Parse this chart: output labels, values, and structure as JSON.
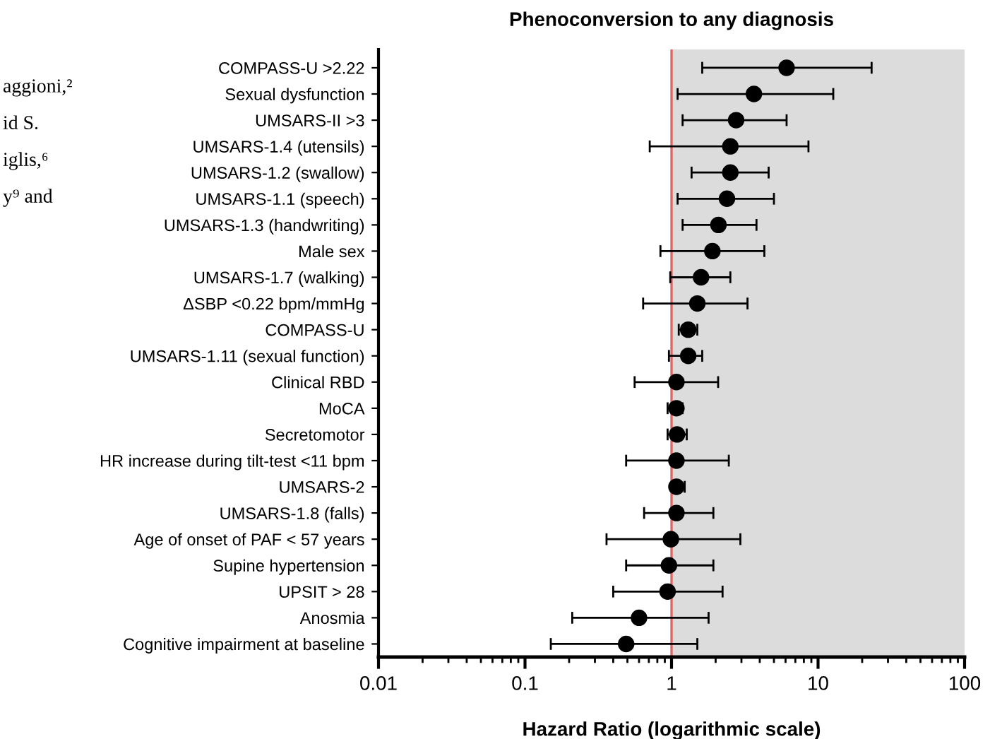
{
  "chart_data": {
    "type": "scatter",
    "title": "Phenoconversion to any diagnosis",
    "xlabel": "Hazard Ratio (logarithmic scale)",
    "categories": [
      "COMPASS-U >2.22",
      "Sexual dysfunction",
      "UMSARS-II >3",
      "UMSARS-1.4 (utensils)",
      "UMSARS-1.2 (swallow)",
      "UMSARS-1.1 (speech)",
      "UMSARS-1.3 (handwriting)",
      "Male sex",
      "UMSARS-1.7 (walking)",
      "ΔSBP <0.22 bpm/mmHg",
      "COMPASS-U",
      "UMSARS-1.11 (sexual function)",
      "Clinical RBD",
      "MoCA",
      "Secretomotor",
      "HR increase during tilt-test <11 bpm",
      "UMSARS-2",
      "UMSARS-1.8 (falls)",
      "Age of onset of PAF < 57 years",
      "Supine hypertension",
      "UPSIT > 28",
      "Anosmia",
      "Cognitive impairment at baseline"
    ],
    "orientation": "horizontal",
    "values": [
      6.1,
      3.65,
      2.76,
      2.52,
      2.52,
      2.39,
      2.09,
      1.9,
      1.59,
      1.5,
      1.3,
      1.3,
      1.08,
      1.08,
      1.09,
      1.08,
      1.08,
      1.08,
      0.99,
      0.96,
      0.94,
      0.6,
      0.49
    ],
    "errors": [
      [
        1.62,
        23.2
      ],
      [
        1.1,
        12.7
      ],
      [
        1.19,
        6.1
      ],
      [
        0.71,
        8.6
      ],
      [
        1.37,
        4.6
      ],
      [
        1.1,
        5.0
      ],
      [
        1.19,
        3.8
      ],
      [
        0.84,
        4.3
      ],
      [
        0.98,
        2.52
      ],
      [
        0.64,
        3.3
      ],
      [
        1.12,
        1.5
      ],
      [
        0.96,
        1.62
      ],
      [
        0.56,
        2.08
      ],
      [
        0.94,
        1.19
      ],
      [
        0.94,
        1.27
      ],
      [
        0.49,
        2.46
      ],
      [
        1.01,
        1.23
      ],
      [
        0.65,
        1.93
      ],
      [
        0.36,
        2.95
      ],
      [
        0.49,
        1.93
      ],
      [
        0.4,
        2.23
      ],
      [
        0.21,
        1.79
      ],
      [
        0.15,
        1.5
      ]
    ],
    "color": "#000000",
    "marker": "circle",
    "log": "x",
    "xlim": [
      0.01,
      100
    ],
    "xticks": [
      0.01,
      0.1,
      1,
      10,
      100
    ],
    "ref_lines": [
      {
        "axis": "x",
        "value": 1,
        "color": "#e06666"
      }
    ],
    "bands": [
      {
        "axis": "x",
        "from": 1,
        "to": 100,
        "color": "#dcdcdc"
      }
    ],
    "grid": false,
    "legend": false,
    "annotations": [
      "aggioni,²",
      "id S.",
      "iglis,⁶",
      "y⁹ and"
    ]
  }
}
